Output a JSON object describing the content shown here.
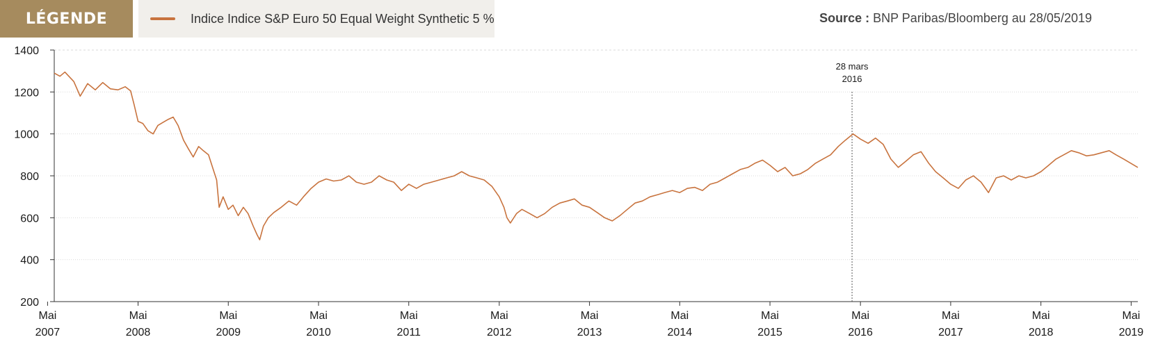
{
  "legend": {
    "badge_label": "LÉGENDE",
    "series_label": "Indice Indice S&P Euro 50 Equal Weight Synthetic 5 %"
  },
  "source": {
    "prefix": "Source :",
    "text": "BNP Paribas/Bloomberg au 28/05/2019"
  },
  "colors": {
    "badge": "#a68b5e",
    "legend_bg": "#f1efeb",
    "series": "#c8733e",
    "grid": "#d9d9d9",
    "axis": "#333333"
  },
  "chart_data": {
    "type": "line",
    "title": "",
    "xlabel": "",
    "ylabel": "",
    "ylim": [
      200,
      1400
    ],
    "xlim": [
      "2007-05-28",
      "2019-05-28"
    ],
    "grid": true,
    "yticks": [
      200,
      400,
      600,
      800,
      1000,
      1200,
      1400
    ],
    "xticks": [
      {
        "date": "2007-05-01",
        "label1": "Mai",
        "label2": "2007"
      },
      {
        "date": "2008-05-01",
        "label1": "Mai",
        "label2": "2008"
      },
      {
        "date": "2009-05-01",
        "label1": "Mai",
        "label2": "2009"
      },
      {
        "date": "2010-05-01",
        "label1": "Mai",
        "label2": "2010"
      },
      {
        "date": "2011-05-01",
        "label1": "Mai",
        "label2": "2011"
      },
      {
        "date": "2012-05-01",
        "label1": "Mai",
        "label2": "2012"
      },
      {
        "date": "2013-05-01",
        "label1": "Mai",
        "label2": "2013"
      },
      {
        "date": "2014-05-01",
        "label1": "Mai",
        "label2": "2014"
      },
      {
        "date": "2015-05-01",
        "label1": "Mai",
        "label2": "2015"
      },
      {
        "date": "2016-05-01",
        "label1": "Mai",
        "label2": "2016"
      },
      {
        "date": "2017-05-01",
        "label1": "Mai",
        "label2": "2017"
      },
      {
        "date": "2018-05-01",
        "label1": "Mai",
        "label2": "2018"
      },
      {
        "date": "2019-05-01",
        "label1": "Mai",
        "label2": "2019"
      }
    ],
    "annotation": {
      "date": "2016-03-28",
      "line1": "28 mars",
      "line2": "2016"
    },
    "series": [
      {
        "name": "Indice Indice S&P Euro 50 Equal Weight Synthetic 5 %",
        "points": [
          [
            "2007-05-28",
            1290
          ],
          [
            "2007-06-20",
            1275
          ],
          [
            "2007-07-10",
            1295
          ],
          [
            "2007-08-15",
            1250
          ],
          [
            "2007-09-10",
            1180
          ],
          [
            "2007-10-10",
            1240
          ],
          [
            "2007-11-10",
            1210
          ],
          [
            "2007-12-10",
            1245
          ],
          [
            "2008-01-10",
            1215
          ],
          [
            "2008-02-10",
            1210
          ],
          [
            "2008-03-10",
            1225
          ],
          [
            "2008-04-01",
            1205
          ],
          [
            "2008-04-15",
            1140
          ],
          [
            "2008-05-01",
            1060
          ],
          [
            "2008-05-20",
            1050
          ],
          [
            "2008-06-10",
            1015
          ],
          [
            "2008-07-01",
            1000
          ],
          [
            "2008-07-20",
            1040
          ],
          [
            "2008-08-10",
            1055
          ],
          [
            "2008-09-01",
            1070
          ],
          [
            "2008-09-20",
            1080
          ],
          [
            "2008-10-10",
            1040
          ],
          [
            "2008-11-01",
            970
          ],
          [
            "2008-11-20",
            930
          ],
          [
            "2008-12-10",
            890
          ],
          [
            "2009-01-01",
            940
          ],
          [
            "2009-01-20",
            920
          ],
          [
            "2009-02-10",
            900
          ],
          [
            "2009-03-01",
            830
          ],
          [
            "2009-03-15",
            780
          ],
          [
            "2009-03-25",
            650
          ],
          [
            "2009-04-10",
            700
          ],
          [
            "2009-05-01",
            640
          ],
          [
            "2009-05-20",
            660
          ],
          [
            "2009-06-10",
            610
          ],
          [
            "2009-07-01",
            650
          ],
          [
            "2009-07-20",
            620
          ],
          [
            "2009-08-10",
            560
          ],
          [
            "2009-08-25",
            520
          ],
          [
            "2009-09-05",
            495
          ],
          [
            "2009-09-20",
            560
          ],
          [
            "2009-10-10",
            600
          ],
          [
            "2009-11-01",
            625
          ],
          [
            "2009-12-01",
            650
          ],
          [
            "2010-01-01",
            680
          ],
          [
            "2010-02-01",
            660
          ],
          [
            "2010-03-01",
            700
          ],
          [
            "2010-04-01",
            740
          ],
          [
            "2010-05-01",
            770
          ],
          [
            "2010-06-01",
            785
          ],
          [
            "2010-07-01",
            775
          ],
          [
            "2010-08-01",
            780
          ],
          [
            "2010-09-01",
            800
          ],
          [
            "2010-10-01",
            770
          ],
          [
            "2010-11-01",
            760
          ],
          [
            "2010-12-01",
            770
          ],
          [
            "2011-01-01",
            800
          ],
          [
            "2011-02-01",
            780
          ],
          [
            "2011-03-01",
            770
          ],
          [
            "2011-04-01",
            730
          ],
          [
            "2011-05-01",
            760
          ],
          [
            "2011-06-01",
            740
          ],
          [
            "2011-07-01",
            760
          ],
          [
            "2011-08-01",
            770
          ],
          [
            "2011-09-01",
            780
          ],
          [
            "2011-10-01",
            790
          ],
          [
            "2011-11-01",
            800
          ],
          [
            "2011-12-01",
            820
          ],
          [
            "2012-01-01",
            800
          ],
          [
            "2012-02-01",
            790
          ],
          [
            "2012-03-01",
            780
          ],
          [
            "2012-04-01",
            750
          ],
          [
            "2012-05-01",
            700
          ],
          [
            "2012-05-20",
            650
          ],
          [
            "2012-06-01",
            600
          ],
          [
            "2012-06-15",
            575
          ],
          [
            "2012-07-10",
            620
          ],
          [
            "2012-08-01",
            640
          ],
          [
            "2012-09-01",
            620
          ],
          [
            "2012-10-01",
            600
          ],
          [
            "2012-11-01",
            620
          ],
          [
            "2012-12-01",
            650
          ],
          [
            "2013-01-01",
            670
          ],
          [
            "2013-02-01",
            680
          ],
          [
            "2013-03-01",
            690
          ],
          [
            "2013-04-01",
            660
          ],
          [
            "2013-05-01",
            650
          ],
          [
            "2013-06-01",
            625
          ],
          [
            "2013-07-01",
            600
          ],
          [
            "2013-08-01",
            585
          ],
          [
            "2013-09-01",
            610
          ],
          [
            "2013-10-01",
            640
          ],
          [
            "2013-11-01",
            670
          ],
          [
            "2013-12-01",
            680
          ],
          [
            "2014-01-01",
            700
          ],
          [
            "2014-02-01",
            710
          ],
          [
            "2014-03-01",
            720
          ],
          [
            "2014-04-01",
            730
          ],
          [
            "2014-05-01",
            720
          ],
          [
            "2014-06-01",
            740
          ],
          [
            "2014-07-01",
            745
          ],
          [
            "2014-08-01",
            730
          ],
          [
            "2014-09-01",
            760
          ],
          [
            "2014-10-01",
            770
          ],
          [
            "2014-11-01",
            790
          ],
          [
            "2014-12-01",
            810
          ],
          [
            "2015-01-01",
            830
          ],
          [
            "2015-02-01",
            840
          ],
          [
            "2015-03-01",
            860
          ],
          [
            "2015-04-01",
            875
          ],
          [
            "2015-05-01",
            850
          ],
          [
            "2015-06-01",
            820
          ],
          [
            "2015-07-01",
            840
          ],
          [
            "2015-08-01",
            800
          ],
          [
            "2015-09-01",
            810
          ],
          [
            "2015-10-01",
            830
          ],
          [
            "2015-11-01",
            860
          ],
          [
            "2015-12-01",
            880
          ],
          [
            "2016-01-01",
            900
          ],
          [
            "2016-02-01",
            940
          ],
          [
            "2016-03-01",
            970
          ],
          [
            "2016-04-01",
            1000
          ],
          [
            "2016-05-01",
            975
          ],
          [
            "2016-06-01",
            955
          ],
          [
            "2016-07-01",
            980
          ],
          [
            "2016-08-01",
            950
          ],
          [
            "2016-09-01",
            880
          ],
          [
            "2016-10-01",
            840
          ],
          [
            "2016-11-01",
            870
          ],
          [
            "2016-12-01",
            900
          ],
          [
            "2017-01-01",
            915
          ],
          [
            "2017-02-01",
            860
          ],
          [
            "2017-03-01",
            820
          ],
          [
            "2017-04-01",
            790
          ],
          [
            "2017-05-01",
            760
          ],
          [
            "2017-06-01",
            740
          ],
          [
            "2017-07-01",
            780
          ],
          [
            "2017-08-01",
            800
          ],
          [
            "2017-09-01",
            770
          ],
          [
            "2017-10-01",
            720
          ],
          [
            "2017-11-01",
            790
          ],
          [
            "2017-12-01",
            800
          ],
          [
            "2018-01-01",
            780
          ],
          [
            "2018-02-01",
            800
          ],
          [
            "2018-03-01",
            790
          ],
          [
            "2018-04-01",
            800
          ],
          [
            "2018-05-01",
            820
          ],
          [
            "2018-06-01",
            850
          ],
          [
            "2018-07-01",
            880
          ],
          [
            "2018-08-01",
            900
          ],
          [
            "2018-09-01",
            920
          ],
          [
            "2018-10-01",
            910
          ],
          [
            "2018-11-01",
            895
          ],
          [
            "2018-12-01",
            900
          ],
          [
            "2019-01-01",
            910
          ],
          [
            "2019-02-01",
            920
          ],
          [
            "2019-03-01",
            900
          ],
          [
            "2019-04-01",
            880
          ],
          [
            "2019-05-28",
            840
          ]
        ]
      }
    ]
  }
}
